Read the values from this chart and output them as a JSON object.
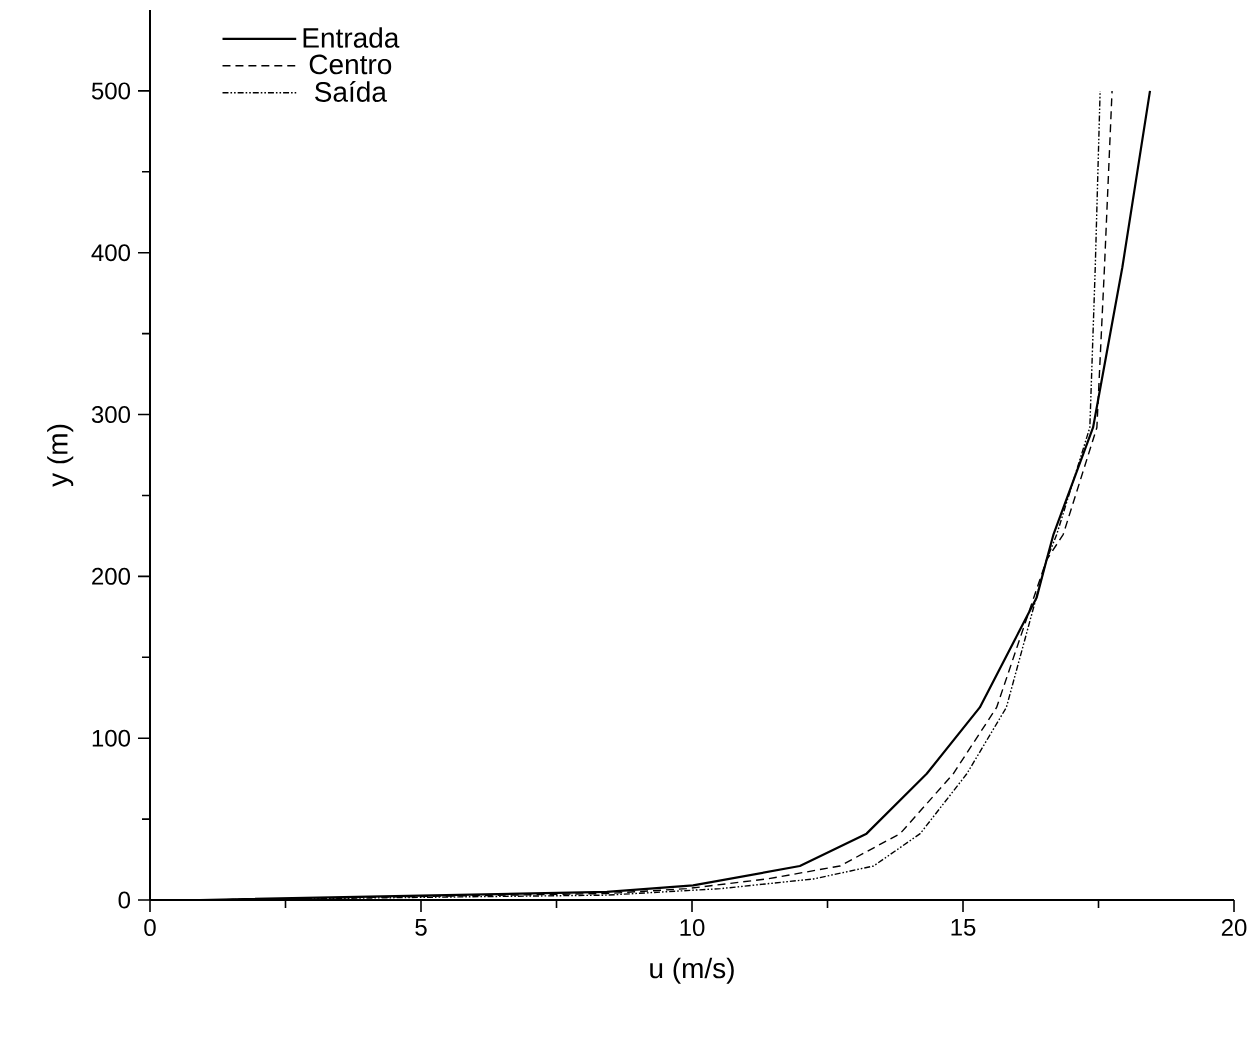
{
  "chart_data": {
    "type": "line",
    "xlabel": "u (m/s)",
    "ylabel": "y (m)",
    "xlim": [
      0,
      20
    ],
    "ylim": [
      0,
      550
    ],
    "xticks": [
      0,
      5,
      10,
      15,
      20
    ],
    "yticks": [
      0,
      100,
      200,
      300,
      400,
      500
    ],
    "legend": "top left",
    "grid": false,
    "marker": "none",
    "series": [
      {
        "name": "Entrada",
        "color": "#000000",
        "line_style": "solid",
        "x": [
          0.92,
          8.43,
          10.02,
          11.99,
          13.22,
          14.33,
          15.31,
          16.36,
          16.54,
          16.67,
          17.4,
          17.94,
          18.45
        ],
        "values": [
          0,
          5,
          9,
          21,
          41,
          78,
          119,
          187,
          210,
          226,
          292,
          391,
          500
        ]
      },
      {
        "name": "Centro",
        "color": "#000000",
        "line_style": "dashed",
        "x": [
          0.92,
          8.43,
          9.9,
          11.38,
          12.73,
          13.84,
          14.82,
          15.62,
          16.54,
          16.85,
          17.47,
          17.61,
          17.75
        ],
        "values": [
          0,
          4,
          7,
          13,
          21,
          41,
          78,
          119,
          210,
          226,
          292,
          391,
          500
        ]
      },
      {
        "name": "Saída",
        "color": "#000000",
        "line_style": "dotted",
        "x": [
          0.92,
          8.43,
          10.52,
          12.24,
          13.35,
          14.21,
          15.07,
          15.8,
          16.54,
          16.73,
          17.34,
          17.44,
          17.53
        ],
        "values": [
          0,
          3,
          7,
          13,
          21,
          41,
          78,
          119,
          210,
          226,
          292,
          391,
          500
        ]
      }
    ]
  }
}
